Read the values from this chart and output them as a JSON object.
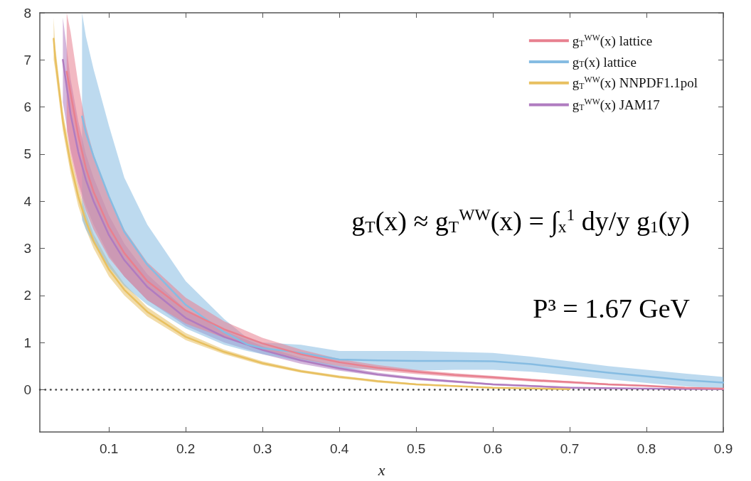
{
  "chart_data": {
    "type": "line",
    "xlabel": "x",
    "xlim": [
      0.01,
      0.9
    ],
    "ylim": [
      -0.9,
      8
    ],
    "xticks": [
      0.1,
      0.2,
      0.3,
      0.4,
      0.5,
      0.6,
      0.7,
      0.8,
      0.9
    ],
    "yticks": [
      0,
      1,
      2,
      3,
      4,
      5,
      6,
      7,
      8
    ],
    "grid": false,
    "legend": "top right",
    "line_style": "solid",
    "series": [
      {
        "name": "g$_{T}$$^{WW}$(x) lattice",
        "color": "#e8808f",
        "values": [
          6.75,
          6.3,
          5.4,
          4.7,
          4.2,
          3.45,
          2.9,
          2.3,
          1.68,
          1.28,
          0.98,
          0.75,
          0.58,
          0.46,
          0.38,
          0.31,
          0.26,
          0.2,
          0.16,
          0.11,
          0.08,
          0.04,
          0.02
        ],
        "x": [
          0.045,
          0.05,
          0.06,
          0.07,
          0.08,
          0.1,
          0.12,
          0.15,
          0.2,
          0.25,
          0.3,
          0.35,
          0.4,
          0.45,
          0.5,
          0.55,
          0.6,
          0.65,
          0.7,
          0.75,
          0.8,
          0.85,
          0.9
        ],
        "lower": [
          5.5,
          5.0,
          4.3,
          3.8,
          3.4,
          2.8,
          2.4,
          1.9,
          1.4,
          1.1,
          0.85,
          0.65,
          0.5,
          0.4,
          0.33,
          0.27,
          0.22,
          0.17,
          0.13,
          0.09,
          0.06,
          0.03,
          0.01
        ],
        "upper": [
          8.0,
          7.6,
          6.5,
          5.6,
          5.0,
          4.1,
          3.4,
          2.7,
          1.95,
          1.45,
          1.1,
          0.85,
          0.65,
          0.52,
          0.42,
          0.35,
          0.29,
          0.23,
          0.18,
          0.13,
          0.09,
          0.05,
          0.02
        ]
      },
      {
        "name": "g$_{T}$(x) lattice",
        "color": "#86bce2",
        "values": [
          5.8,
          5.45,
          4.95,
          4.1,
          3.35,
          2.65,
          1.8,
          1.22,
          0.96,
          0.88,
          0.78,
          0.64,
          0.62,
          0.61,
          0.61,
          0.6,
          0.54,
          0.45,
          0.36,
          0.28,
          0.2,
          0.15
        ],
        "x": [
          0.065,
          0.07,
          0.08,
          0.1,
          0.12,
          0.15,
          0.2,
          0.25,
          0.28,
          0.3,
          0.35,
          0.4,
          0.45,
          0.5,
          0.55,
          0.6,
          0.65,
          0.7,
          0.75,
          0.8,
          0.85,
          0.9
        ],
        "lower": [
          3.6,
          3.4,
          3.1,
          2.6,
          2.2,
          1.8,
          1.3,
          0.95,
          0.82,
          0.75,
          0.6,
          0.45,
          0.42,
          0.4,
          0.42,
          0.42,
          0.38,
          0.3,
          0.22,
          0.14,
          0.07,
          0.02
        ],
        "upper": [
          8.0,
          7.5,
          6.8,
          5.6,
          4.5,
          3.5,
          2.3,
          1.5,
          1.1,
          1.0,
          0.95,
          0.82,
          0.82,
          0.82,
          0.8,
          0.78,
          0.7,
          0.6,
          0.5,
          0.42,
          0.34,
          0.27
        ]
      },
      {
        "name": "g$_{T}$$^{WW}$(x) NNPDF1.1pol",
        "color": "#e8c060",
        "values": [
          7.45,
          7.05,
          5.7,
          4.8,
          4.1,
          3.58,
          3.15,
          2.55,
          2.12,
          1.65,
          1.12,
          0.8,
          0.56,
          0.39,
          0.27,
          0.18,
          0.11,
          0.04,
          0.01
        ],
        "x": [
          0.028,
          0.03,
          0.04,
          0.05,
          0.06,
          0.07,
          0.08,
          0.1,
          0.12,
          0.15,
          0.2,
          0.25,
          0.3,
          0.35,
          0.4,
          0.45,
          0.5,
          0.6,
          0.7
        ],
        "lower": [
          7.0,
          6.8,
          5.5,
          4.6,
          3.9,
          3.4,
          3.0,
          2.4,
          2.0,
          1.55,
          1.05,
          0.75,
          0.52,
          0.36,
          0.24,
          0.15,
          0.09,
          0.03,
          0.0
        ],
        "upper": [
          7.9,
          7.3,
          5.9,
          5.0,
          4.3,
          3.75,
          3.3,
          2.7,
          2.25,
          1.75,
          1.2,
          0.85,
          0.6,
          0.42,
          0.3,
          0.2,
          0.13,
          0.05,
          0.01
        ]
      },
      {
        "name": "g$_{T}$$^{WW}$(x) JAM17",
        "color": "#b07cc0",
        "values": [
          7.0,
          5.85,
          5.05,
          4.45,
          4.0,
          3.28,
          2.75,
          2.18,
          1.52,
          1.12,
          0.84,
          0.62,
          0.45,
          0.32,
          0.23,
          0.11,
          0.04,
          0.02,
          0.01
        ],
        "x": [
          0.04,
          0.05,
          0.06,
          0.07,
          0.08,
          0.1,
          0.12,
          0.15,
          0.2,
          0.25,
          0.3,
          0.35,
          0.4,
          0.45,
          0.5,
          0.6,
          0.7,
          0.8,
          0.9
        ],
        "lower": [
          6.1,
          5.1,
          4.4,
          3.9,
          3.5,
          2.85,
          2.4,
          1.9,
          1.35,
          1.0,
          0.75,
          0.55,
          0.4,
          0.29,
          0.2,
          0.09,
          0.03,
          0.01,
          0.0
        ],
        "upper": [
          7.9,
          6.6,
          5.7,
          5.0,
          4.5,
          3.7,
          3.1,
          2.45,
          1.7,
          1.25,
          0.92,
          0.68,
          0.5,
          0.36,
          0.26,
          0.13,
          0.06,
          0.02,
          0.01
        ]
      }
    ],
    "ref_lines": [
      {
        "axis": "y",
        "value": 0,
        "line_style": "dotted",
        "color": "#444444"
      }
    ],
    "annotations": [
      "g$_{T}$(x) ≈ g$_{T}$$^{WW}$(x) = ∫$_{x}$$^{1}$ dy/y g$_{1}$(y)",
      "P³ = 1.67 GeV"
    ]
  }
}
